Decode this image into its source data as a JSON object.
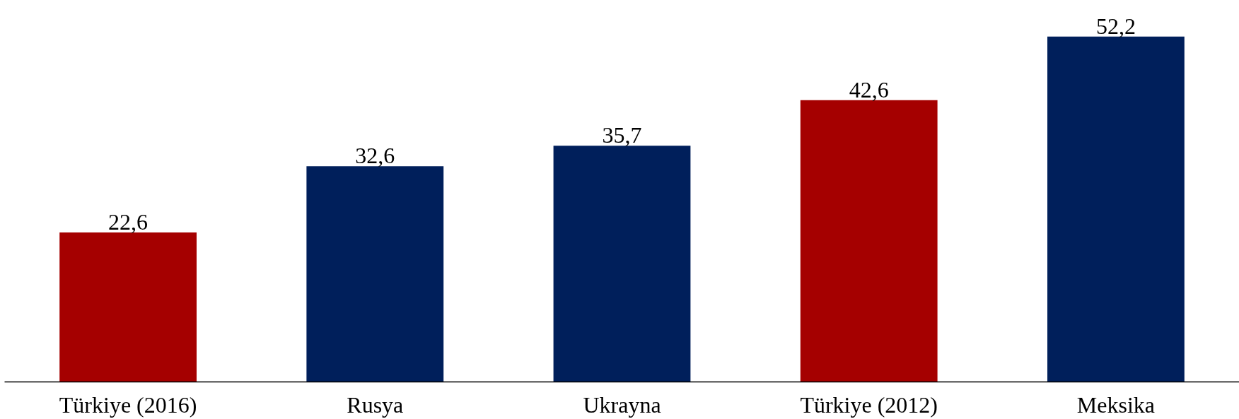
{
  "chart_data": {
    "type": "bar",
    "categories": [
      "Türkiye (2016)",
      "Rusya",
      "Ukrayna",
      "Türkiye (2012)",
      "Meksika"
    ],
    "values": [
      22.6,
      32.6,
      35.7,
      42.6,
      52.2
    ],
    "value_labels": [
      "22,6",
      "32,6",
      "35,7",
      "42,6",
      "52,2"
    ],
    "colors": [
      "#a50000",
      "#001f5b",
      "#001f5b",
      "#a50000",
      "#001f5b"
    ],
    "grid": false
  }
}
